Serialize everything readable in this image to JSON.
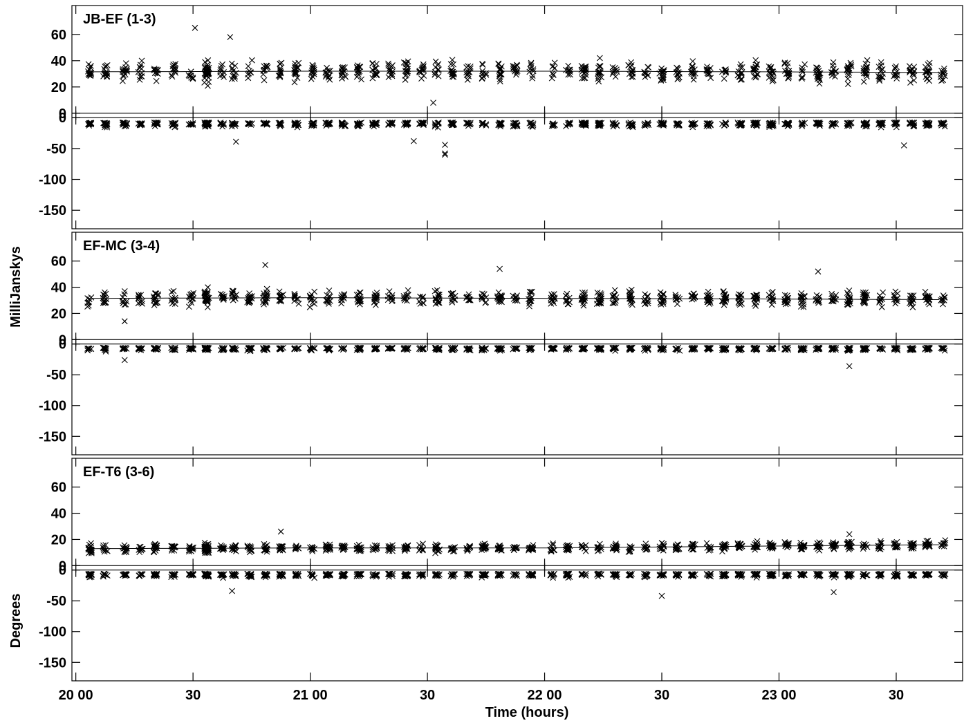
{
  "chart_data": {
    "type": "scatter",
    "marker": "x",
    "xlabel": "Time (hours)",
    "ylabel_amplitude": "MilliJanskys",
    "ylabel_phase": "Degrees",
    "x_ticks": [
      {
        "value": 0,
        "label": "20 00"
      },
      {
        "value": 30,
        "label": "30"
      },
      {
        "value": 60,
        "label": "21 00"
      },
      {
        "value": 90,
        "label": "30"
      },
      {
        "value": 120,
        "label": "22 00"
      },
      {
        "value": 150,
        "label": "30"
      },
      {
        "value": 180,
        "label": "23 00"
      },
      {
        "value": 210,
        "label": "30"
      }
    ],
    "x_range_minutes": [
      -1,
      227
    ],
    "amplitude_ticks": [
      0,
      20,
      40,
      60
    ],
    "phase_ticks": [
      0,
      -50,
      -100,
      -150
    ],
    "amplitude_range": [
      -3,
      82
    ],
    "phase_range": [
      -180,
      8
    ],
    "scan_times_minutes": [
      3.5,
      7.5,
      12.5,
      16.5,
      20.5,
      25,
      29.5,
      33.5,
      37.5,
      40.5,
      44.5,
      48.5,
      52.5,
      56.5,
      60.5,
      64.5,
      68.5,
      72.5,
      76.5,
      80.5,
      84.5,
      88.5,
      92.5,
      96.5,
      100.5,
      104.5,
      108.5,
      112.5,
      116.5,
      122,
      126,
      130,
      134,
      138,
      142,
      146,
      150,
      154,
      158,
      162,
      166,
      170,
      174,
      178,
      182,
      186,
      190,
      194,
      198,
      202,
      206,
      210,
      214,
      218,
      222
    ],
    "panels": [
      {
        "title": "JB-EF (1-3)",
        "amp_fit": [
          [
            3,
            31.5
          ],
          [
            60,
            32
          ],
          [
            120,
            32
          ],
          [
            180,
            31.5
          ],
          [
            222,
            31
          ]
        ],
        "amp_spread": 9,
        "phase_mean": -12,
        "phase_spread": 7,
        "amp_outliers": [
          [
            39.5,
            58
          ],
          [
            30.5,
            65
          ],
          [
            91.5,
            8
          ],
          [
            94.5,
            -60
          ]
        ],
        "phase_outliers": [
          [
            86.5,
            -38
          ],
          [
            94.5,
            -44
          ],
          [
            94.5,
            -58
          ],
          [
            212,
            -45
          ],
          [
            41,
            -39
          ]
        ]
      },
      {
        "title": "EF-MC (3-4)",
        "amp_fit": [
          [
            3,
            31.5
          ],
          [
            60,
            32
          ],
          [
            120,
            31.5
          ],
          [
            180,
            31
          ],
          [
            222,
            30.5
          ]
        ],
        "amp_spread": 7,
        "phase_mean": -10,
        "phase_spread": 5,
        "amp_outliers": [
          [
            48.5,
            57
          ],
          [
            12.5,
            14
          ],
          [
            108.5,
            54
          ],
          [
            190,
            52
          ]
        ],
        "phase_outliers": [
          [
            198,
            -36
          ],
          [
            12.5,
            -26
          ]
        ]
      },
      {
        "title": "EF-T6 (3-6)",
        "amp_fit": [
          [
            3,
            13
          ],
          [
            60,
            13.5
          ],
          [
            120,
            13.5
          ],
          [
            180,
            15
          ],
          [
            222,
            16
          ]
        ],
        "amp_spread": 4,
        "phase_mean": -10,
        "phase_spread": 6,
        "amp_outliers": [
          [
            52.5,
            26
          ],
          [
            198,
            24
          ]
        ],
        "phase_outliers": [
          [
            150,
            -42
          ],
          [
            194,
            -36
          ],
          [
            40,
            -34
          ]
        ]
      }
    ]
  }
}
